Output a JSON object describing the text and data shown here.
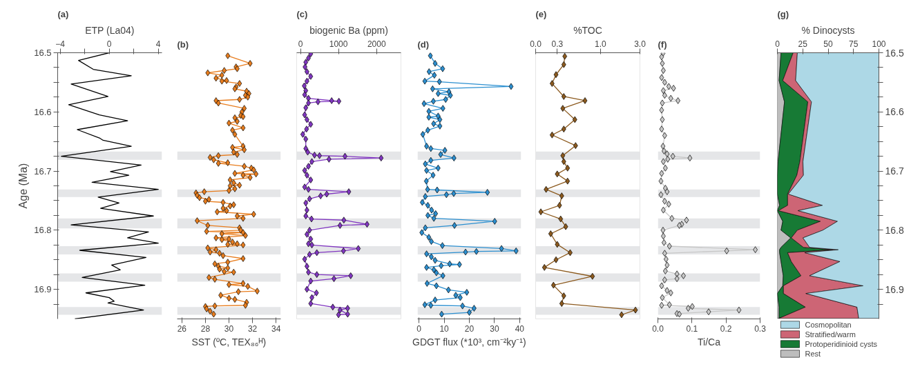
{
  "chart_data": [
    {
      "type": "line",
      "title": "(a)",
      "xlabel": "ETP (La04)",
      "ylabel": "Age (Ma)",
      "orientation": "horizontal",
      "marker": "none",
      "line_style": "solid",
      "xlim": [
        -4.2,
        4.3
      ],
      "xticks": [
        {
          "value": -4,
          "label": "−4"
        },
        {
          "value": -2,
          "label": null
        },
        0,
        {
          "value": 2,
          "label": null
        },
        4
      ],
      "ylim": [
        16.95,
        16.5
      ],
      "yticks": [
        16.5,
        {
          "value": 16.525,
          "label": null
        },
        {
          "value": 16.55,
          "label": null
        },
        {
          "value": 16.575,
          "label": null
        },
        16.6,
        {
          "value": 16.625,
          "label": null
        },
        {
          "value": 16.65,
          "label": null
        },
        {
          "value": 16.675,
          "label": null
        },
        16.7,
        {
          "value": 16.725,
          "label": null
        },
        {
          "value": 16.75,
          "label": null
        },
        {
          "value": 16.775,
          "label": null
        },
        16.8,
        {
          "value": 16.825,
          "label": null
        },
        {
          "value": 16.85,
          "label": null
        },
        {
          "value": 16.875,
          "label": null
        },
        16.9,
        {
          "value": 16.925,
          "label": null
        }
      ],
      "bands": [
        {
          "axis": "y",
          "from": 16.667,
          "to": 16.681,
          "color": "#e5e6e8"
        },
        {
          "axis": "y",
          "from": 16.731,
          "to": 16.744,
          "color": "#e5e6e8"
        },
        {
          "axis": "y",
          "from": 16.78,
          "to": 16.797,
          "color": "#e5e6e8"
        },
        {
          "axis": "y",
          "from": 16.827,
          "to": 16.841,
          "color": "#e5e6e8"
        },
        {
          "axis": "y",
          "from": 16.873,
          "to": 16.887,
          "color": "#e5e6e8"
        },
        {
          "axis": "y",
          "from": 16.93,
          "to": 16.943,
          "color": "#e5e6e8"
        }
      ],
      "series": [
        {
          "color": "#000000",
          "x": [
            16.5,
            16.513,
            16.528,
            16.539,
            16.553,
            16.574,
            16.588,
            16.605,
            16.615,
            16.63,
            16.644,
            16.648,
            16.658,
            16.675,
            16.69,
            16.701,
            16.707,
            16.719,
            16.731,
            16.744,
            16.754,
            16.763,
            16.776,
            16.791,
            16.803,
            16.813,
            16.822,
            16.834,
            16.846,
            16.859,
            16.867,
            16.88,
            16.893,
            16.906,
            16.914,
            16.92,
            16.923,
            16.935,
            16.95
          ],
          "values": [
            0,
            -2.5,
            -1.3,
            1.8,
            -3.1,
            -0.1,
            -3.3,
            -0.8,
            1.5,
            -2.6,
            -0.8,
            -0.5,
            1.8,
            -3.9,
            2.6,
            0.1,
            1.6,
            -1.4,
            4.0,
            -0.9,
            0.8,
            -0.7,
            3.6,
            -3.1,
            3.2,
            1.5,
            4.0,
            -2.4,
            3.0,
            0.2,
            0.9,
            -2.2,
            2.9,
            -1.9,
            0.0,
            0.4,
            -0.1,
            2.8,
            -2.8
          ]
        }
      ]
    },
    {
      "type": "line",
      "title": "(b)",
      "xlabel": "SST (ºC, TEX₈₆ᴴ)",
      "orientation": "horizontal",
      "marker": "diamond",
      "line_style": "solid",
      "tick_labels": "x",
      "xlim": [
        25.6,
        34.4
      ],
      "xticks": [
        26,
        28,
        30,
        32,
        34
      ],
      "ylim": [
        16.95,
        16.5
      ],
      "bands": [
        {
          "axis": "y",
          "from": 16.667,
          "to": 16.681,
          "color": "#e5e6e8"
        },
        {
          "axis": "y",
          "from": 16.731,
          "to": 16.744,
          "color": "#e5e6e8"
        },
        {
          "axis": "y",
          "from": 16.78,
          "to": 16.797,
          "color": "#e5e6e8"
        },
        {
          "axis": "y",
          "from": 16.827,
          "to": 16.841,
          "color": "#e5e6e8"
        },
        {
          "axis": "y",
          "from": 16.873,
          "to": 16.887,
          "color": "#e5e6e8"
        },
        {
          "axis": "y",
          "from": 16.93,
          "to": 16.943,
          "color": "#e5e6e8"
        }
      ],
      "series": [
        {
          "color": "#e87d1e",
          "x": [
            16.505,
            16.518,
            16.524,
            16.527,
            16.53,
            16.534,
            16.538,
            16.543,
            16.547,
            16.548,
            16.552,
            16.558,
            16.561,
            16.565,
            16.569,
            16.572,
            16.575,
            16.579,
            16.581,
            16.585,
            16.594,
            16.6,
            16.606,
            16.608,
            16.61,
            16.616,
            16.619,
            16.627,
            16.631,
            16.638,
            16.658,
            16.66,
            16.664,
            16.668,
            16.672,
            16.674,
            16.677,
            16.681,
            16.686,
            16.687,
            16.692,
            16.695,
            16.698,
            16.704,
            16.705,
            16.707,
            16.711,
            16.715,
            16.72,
            16.724,
            16.725,
            16.73,
            16.733,
            16.735,
            16.737,
            16.741,
            16.745,
            16.748,
            16.751,
            16.753,
            16.757,
            16.759,
            16.763,
            16.767,
            16.769,
            16.773,
            16.776,
            16.78,
            16.784,
            16.792,
            16.796,
            16.8,
            16.802,
            16.804,
            16.806,
            16.809,
            16.813,
            16.815,
            16.816,
            16.82,
            16.823,
            16.824,
            16.825,
            16.83,
            16.833,
            16.837,
            16.839,
            16.843,
            16.848,
            16.854,
            16.857,
            16.861,
            16.864,
            16.866,
            16.87,
            16.871,
            16.88,
            16.883,
            16.89,
            16.892,
            16.895,
            16.903,
            16.904,
            16.91,
            16.915,
            16.917,
            16.922,
            16.927,
            16.928,
            16.929,
            16.933,
            16.937,
            16.942
          ],
          "values": [
            29.9,
            31.8,
            30.6,
            30.7,
            29.6,
            28.2,
            29.4,
            28.9,
            29.8,
            29.4,
            30.9,
            30.6,
            30.5,
            31.5,
            31.7,
            31.4,
            31.6,
            30.9,
            28.9,
            29.1,
            31.3,
            31.1,
            31.0,
            31.2,
            30.5,
            30.7,
            30.0,
            31.2,
            30.3,
            30.5,
            31.2,
            30.3,
            31.3,
            30.4,
            30.7,
            29.1,
            28.4,
            28.7,
            29.9,
            29.1,
            31.3,
            31.9,
            32.1,
            30.5,
            32.3,
            31.2,
            31.8,
            30.1,
            30.4,
            30.9,
            30.1,
            30.5,
            30.0,
            27.9,
            27.2,
            27.3,
            27.5,
            28.3,
            28.0,
            29.5,
            30.4,
            30.1,
            29.5,
            29.8,
            29.0,
            32.1,
            30.7,
            31.2,
            27.3,
            28.2,
            30.9,
            31.0,
            28.1,
            31.2,
            29.4,
            31.4,
            28.9,
            30.0,
            29.4,
            30.3,
            30.7,
            29.9,
            31.2,
            28.2,
            28.9,
            28.4,
            29.2,
            29.5,
            31.2,
            29.9,
            28.8,
            29.1,
            29.9,
            29.2,
            29.6,
            30.4,
            28.3,
            28.8,
            31.2,
            30.0,
            31.6,
            32.4,
            30.8,
            29.3,
            30.0,
            30.5,
            31.5,
            31.4,
            28.8,
            28.0,
            28.1,
            28.4,
            28.7
          ]
        }
      ]
    },
    {
      "type": "line",
      "title": "(c)",
      "xlabel": "biogenic Ba (ppm)",
      "orientation": "horizontal",
      "marker": "diamond",
      "line_style": "solid",
      "tick_labels": "x",
      "xlim": [
        -100,
        2640
      ],
      "xticks": [
        0,
        1000,
        2000
      ],
      "ylim": [
        16.95,
        16.5
      ],
      "bands": [
        {
          "axis": "y",
          "from": 16.667,
          "to": 16.681,
          "color": "#e5e6e8"
        },
        {
          "axis": "y",
          "from": 16.731,
          "to": 16.744,
          "color": "#e5e6e8"
        },
        {
          "axis": "y",
          "from": 16.78,
          "to": 16.797,
          "color": "#e5e6e8"
        },
        {
          "axis": "y",
          "from": 16.827,
          "to": 16.841,
          "color": "#e5e6e8"
        },
        {
          "axis": "y",
          "from": 16.873,
          "to": 16.887,
          "color": "#e5e6e8"
        },
        {
          "axis": "y",
          "from": 16.93,
          "to": 16.943,
          "color": "#e5e6e8"
        }
      ],
      "series": [
        {
          "color": "#8036c0",
          "x": [
            16.502,
            16.509,
            16.516,
            16.524,
            16.532,
            16.54,
            16.548,
            16.556,
            16.564,
            16.571,
            16.577,
            16.581,
            16.582,
            16.583,
            16.585,
            16.593,
            16.605,
            16.613,
            16.621,
            16.629,
            16.638,
            16.646,
            16.662,
            16.668,
            16.673,
            16.674,
            16.675,
            16.678,
            16.68,
            16.684,
            16.692,
            16.699,
            16.707,
            16.715,
            16.727,
            16.731,
            16.735,
            16.739,
            16.742,
            16.747,
            16.754,
            16.766,
            16.776,
            16.781,
            16.783,
            16.79,
            16.792,
            16.8,
            16.807,
            16.815,
            16.823,
            16.825,
            16.831,
            16.835,
            16.838,
            16.841,
            16.849,
            16.861,
            16.871,
            16.875,
            16.877,
            16.882,
            16.886,
            16.9,
            16.906,
            16.914,
            16.924,
            16.93,
            16.932,
            16.935,
            16.942,
            16.943
          ],
          "values": [
            270,
            210,
            140,
            120,
            170,
            270,
            170,
            100,
            140,
            110,
            210,
            820,
            1010,
            460,
            210,
            140,
            110,
            170,
            270,
            160,
            60,
            140,
            140,
            190,
            370,
            500,
            1170,
            2120,
            750,
            300,
            210,
            110,
            170,
            270,
            110,
            210,
            1270,
            690,
            530,
            240,
            140,
            170,
            140,
            290,
            1140,
            1750,
            1040,
            240,
            170,
            270,
            210,
            300,
            1520,
            1130,
            430,
            240,
            110,
            170,
            210,
            430,
            1320,
            880,
            270,
            170,
            420,
            300,
            270,
            850,
            1240,
            1040,
            1240,
            1000
          ]
        }
      ]
    },
    {
      "type": "line",
      "title": "(d)",
      "xlabel": "GDGT flux (*10³, cm⁻²ky⁻¹)",
      "orientation": "horizontal",
      "marker": "diamond",
      "line_style": "solid",
      "tick_labels": "x",
      "xlim": [
        -0.6,
        40.6
      ],
      "xticks": [
        0,
        10,
        20,
        30,
        40
      ],
      "ylim": [
        16.95,
        16.5
      ],
      "bands": [
        {
          "axis": "y",
          "from": 16.667,
          "to": 16.681,
          "color": "#e5e6e8"
        },
        {
          "axis": "y",
          "from": 16.731,
          "to": 16.744,
          "color": "#e5e6e8"
        },
        {
          "axis": "y",
          "from": 16.78,
          "to": 16.797,
          "color": "#e5e6e8"
        },
        {
          "axis": "y",
          "from": 16.827,
          "to": 16.841,
          "color": "#e5e6e8"
        },
        {
          "axis": "y",
          "from": 16.873,
          "to": 16.887,
          "color": "#e5e6e8"
        },
        {
          "axis": "y",
          "from": 16.93,
          "to": 16.943,
          "color": "#e5e6e8"
        }
      ],
      "series": [
        {
          "color": "#2b8fd0",
          "x": [
            16.505,
            16.518,
            16.527,
            16.532,
            16.538,
            16.548,
            16.549,
            16.557,
            16.561,
            16.566,
            16.569,
            16.572,
            16.579,
            16.582,
            16.586,
            16.594,
            16.599,
            16.607,
            16.609,
            16.613,
            16.62,
            16.624,
            16.631,
            16.638,
            16.658,
            16.662,
            16.665,
            16.672,
            16.678,
            16.682,
            16.688,
            16.695,
            16.699,
            16.707,
            16.717,
            16.731,
            16.732,
            16.736,
            16.738,
            16.74,
            16.743,
            16.753,
            16.758,
            16.766,
            16.772,
            16.775,
            16.78,
            16.785,
            16.792,
            16.796,
            16.804,
            16.812,
            16.819,
            16.826,
            16.831,
            16.835,
            16.836,
            16.837,
            16.84,
            16.845,
            16.851,
            16.857,
            16.858,
            16.86,
            16.863,
            16.867,
            16.872,
            16.877,
            16.89,
            16.894,
            16.901,
            16.905,
            16.91,
            16.914,
            16.918,
            16.926,
            16.927,
            16.928,
            16.932,
            16.939,
            16.942
          ],
          "values": [
            4.5,
            6.4,
            9.4,
            4.0,
            6.1,
            2.3,
            8.1,
            36.6,
            5.4,
            11.9,
            7.6,
            12.5,
            10.6,
            5.7,
            2.0,
            9.5,
            3.9,
            7.6,
            3.9,
            8.3,
            5.8,
            8.3,
            3.5,
            1.5,
            3.0,
            4.7,
            10.3,
            8.6,
            13.9,
            4.7,
            2.5,
            7.6,
            3.0,
            5.6,
            2.9,
            3.4,
            7.2,
            27.2,
            13.8,
            10.9,
            2.5,
            1.3,
            3.5,
            5.0,
            6.6,
            3.5,
            5.9,
            30.1,
            14.1,
            2.5,
            1.1,
            3.9,
            4.9,
            9.3,
            32.8,
            38.6,
            22.8,
            18.5,
            3.0,
            4.9,
            6.4,
            12.2,
            16.1,
            8.8,
            3.0,
            5.9,
            6.9,
            9.5,
            3.2,
            6.9,
            11.7,
            19.0,
            14.6,
            16.4,
            6.4,
            2.3,
            4.7,
            17.3,
            21.9,
            20.0,
            9.0
          ]
        }
      ]
    },
    {
      "type": "line",
      "title": "(e)",
      "xlabel": "%TOC",
      "orientation": "horizontal",
      "marker": "diamond",
      "line_style": "solid",
      "tick_labels": "x",
      "log": "x",
      "xlim": [
        0,
        3.0
      ],
      "xticks": [
        {
          "value": 0,
          "label": "0.0"
        },
        0.3,
        {
          "value": 1,
          "label": "1.0"
        },
        {
          "value": 3,
          "label": "3.0"
        }
      ],
      "ylim": [
        16.95,
        16.5
      ],
      "bands": [
        {
          "axis": "y",
          "from": 16.667,
          "to": 16.681,
          "color": "#e5e6e8"
        },
        {
          "axis": "y",
          "from": 16.731,
          "to": 16.744,
          "color": "#e5e6e8"
        },
        {
          "axis": "y",
          "from": 16.78,
          "to": 16.797,
          "color": "#e5e6e8"
        },
        {
          "axis": "y",
          "from": 16.827,
          "to": 16.841,
          "color": "#e5e6e8"
        },
        {
          "axis": "y",
          "from": 16.873,
          "to": 16.887,
          "color": "#e5e6e8"
        },
        {
          "axis": "y",
          "from": 16.93,
          "to": 16.943,
          "color": "#e5e6e8"
        }
      ],
      "series": [
        {
          "color": "#8c5a1e",
          "x": [
            16.506,
            16.52,
            16.537,
            16.552,
            16.574,
            16.581,
            16.594,
            16.613,
            16.629,
            16.639,
            16.657,
            16.674,
            16.684,
            16.695,
            16.705,
            16.717,
            16.731,
            16.742,
            16.758,
            16.769,
            16.781,
            16.794,
            16.806,
            16.824,
            16.838,
            16.85,
            16.863,
            16.878,
            16.893,
            16.911,
            16.924,
            16.935,
            16.943
          ],
          "values": [
            0.37,
            0.36,
            0.29,
            0.26,
            0.36,
            0.65,
            0.35,
            0.49,
            0.36,
            0.26,
            0.5,
            0.35,
            0.36,
            0.4,
            0.3,
            0.4,
            0.22,
            0.34,
            0.32,
            0.19,
            0.33,
            0.38,
            0.25,
            0.3,
            0.43,
            0.29,
            0.21,
            0.8,
            0.27,
            0.36,
            0.34,
            2.65,
            1.8
          ]
        }
      ]
    },
    {
      "type": "line",
      "title": "(f)",
      "xlabel": "Ti/Ca",
      "orientation": "horizontal",
      "marker": "diamond",
      "line_style": "solid",
      "tick_labels": "x",
      "xlim": [
        0,
        0.3
      ],
      "xticks": [
        {
          "value": 0,
          "label": "0.0"
        },
        0.1,
        0.2,
        0.3
      ],
      "ylim": [
        16.95,
        16.5
      ],
      "bands": [
        {
          "axis": "y",
          "from": 16.667,
          "to": 16.681,
          "color": "#e5e6e8"
        },
        {
          "axis": "y",
          "from": 16.731,
          "to": 16.744,
          "color": "#e5e6e8"
        },
        {
          "axis": "y",
          "from": 16.78,
          "to": 16.797,
          "color": "#e5e6e8"
        },
        {
          "axis": "y",
          "from": 16.827,
          "to": 16.841,
          "color": "#e5e6e8"
        },
        {
          "axis": "y",
          "from": 16.873,
          "to": 16.887,
          "color": "#e5e6e8"
        },
        {
          "axis": "y",
          "from": 16.93,
          "to": 16.943,
          "color": "#e5e6e8"
        }
      ],
      "series": [
        {
          "color": "#c8c8c8",
          "x": [
            16.501,
            16.507,
            16.518,
            16.53,
            16.542,
            16.55,
            16.557,
            16.56,
            16.564,
            16.572,
            16.577,
            16.581,
            16.585,
            16.597,
            16.613,
            16.629,
            16.64,
            16.658,
            16.666,
            16.671,
            16.675,
            16.678,
            16.68,
            16.684,
            16.695,
            16.704,
            16.717,
            16.729,
            16.735,
            16.74,
            16.751,
            16.756,
            16.766,
            16.78,
            16.783,
            16.79,
            16.792,
            16.8,
            16.81,
            16.821,
            16.827,
            16.833,
            16.835,
            16.839,
            16.849,
            16.859,
            16.869,
            16.874,
            16.877,
            16.882,
            16.884,
            16.894,
            16.902,
            16.906,
            16.914,
            16.926,
            16.927,
            16.929,
            16.932,
            16.935,
            16.938,
            16.941,
            16.942
          ],
          "values": [
            0.015,
            0.011,
            0.013,
            0.016,
            0.011,
            0.02,
            0.032,
            0.046,
            0.016,
            0.02,
            0.038,
            0.059,
            0.013,
            0.011,
            0.013,
            0.011,
            0.02,
            0.015,
            0.018,
            0.027,
            0.044,
            0.094,
            0.029,
            0.016,
            0.022,
            0.011,
            0.009,
            0.022,
            0.027,
            0.009,
            0.02,
            0.032,
            0.016,
            0.041,
            0.084,
            0.07,
            0.063,
            0.015,
            0.016,
            0.018,
            0.034,
            0.286,
            0.202,
            0.02,
            0.024,
            0.027,
            0.022,
            0.056,
            0.075,
            0.056,
            0.02,
            0.011,
            0.027,
            0.038,
            0.013,
            0.034,
            0.011,
            0.101,
            0.089,
            0.238,
            0.149,
            0.056,
            0.063
          ]
        }
      ]
    },
    {
      "type": "area",
      "title": "(g)",
      "xlabel": "% Dinocysts",
      "orientation": "horizontal",
      "stacked": true,
      "legend": "bottom",
      "xlim": [
        0,
        100
      ],
      "xticks": [
        0,
        25,
        50,
        75,
        100
      ],
      "ylim": [
        16.95,
        16.5
      ],
      "yticks": [
        16.5,
        {
          "value": 16.525,
          "label": null
        },
        {
          "value": 16.55,
          "label": null
        },
        {
          "value": 16.575,
          "label": null
        },
        16.6,
        {
          "value": 16.625,
          "label": null
        },
        {
          "value": 16.65,
          "label": null
        },
        {
          "value": 16.675,
          "label": null
        },
        16.7,
        {
          "value": 16.725,
          "label": null
        },
        {
          "value": 16.75,
          "label": null
        },
        {
          "value": 16.775,
          "label": null
        },
        16.8,
        {
          "value": 16.825,
          "label": null
        },
        {
          "value": 16.85,
          "label": null
        },
        {
          "value": 16.875,
          "label": null
        },
        16.9,
        {
          "value": 16.925,
          "label": null
        }
      ],
      "x": [
        16.5,
        16.547,
        16.583,
        16.684,
        16.707,
        16.739,
        16.758,
        16.767,
        16.785,
        16.8,
        16.813,
        16.829,
        16.833,
        16.838,
        16.853,
        16.877,
        16.894,
        16.907,
        16.93,
        16.949
      ],
      "series": [
        {
          "name": "Rest",
          "color": "#bdbdbd",
          "values": [
            3.6,
            1.7,
            7.0,
            0.7,
            0,
            0,
            2.2,
            0,
            5.3,
            3.6,
            13.2,
            3.6,
            2.2,
            2.2,
            3.6,
            5.8,
            5.3,
            0,
            1.7,
            1.7
          ]
        },
        {
          "name": "Protoperidinioid cysts",
          "color": "#177a35",
          "values": [
            12.0,
            3.6,
            23.0,
            21.4,
            19.2,
            10.1,
            7.9,
            1.0,
            37.1,
            16.1,
            0.5,
            22.1,
            52.2,
            7.9,
            10.1,
            17.5,
            0.7,
            6.0,
            25.9,
            0
          ]
        },
        {
          "name": "Stratified/warm",
          "color": "#cd6575",
          "values": [
            4.1,
            12.7,
            3.6,
            3.1,
            6.5,
            0.7,
            34.3,
            19.4,
            16.8,
            25.1,
            11.5,
            6.0,
            5.6,
            16.8,
            47.9,
            8.4,
            78.4,
            22.1,
            50.8,
            78.4
          ]
        },
        {
          "name": "Cosmopolitan",
          "color": "#add8e6",
          "values": [
            80.3,
            82.0,
            66.4,
            74.8,
            74.3,
            89.2,
            55.6,
            79.6,
            40.8,
            55.2,
            74.8,
            68.3,
            40.0,
            73.1,
            38.4,
            68.3,
            15.6,
            71.9,
            21.6,
            19.9
          ]
        }
      ]
    }
  ]
}
